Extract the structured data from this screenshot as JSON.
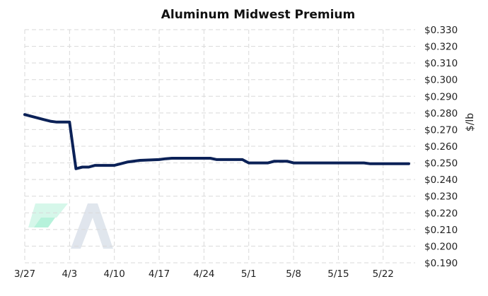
{
  "chart_data": {
    "type": "line",
    "title": "Aluminum Midwest Premium",
    "xlabel": "",
    "ylabel": "$/lb",
    "x_tick_labels": [
      "3/27",
      "4/3",
      "4/10",
      "4/17",
      "4/24",
      "5/1",
      "5/8",
      "5/15",
      "5/22"
    ],
    "y_tick_labels": [
      "$0.190",
      "$0.200",
      "$0.210",
      "$0.220",
      "$0.230",
      "$0.240",
      "$0.250",
      "$0.260",
      "$0.270",
      "$0.280",
      "$0.290",
      "$0.300",
      "$0.310",
      "$0.320",
      "$0.330"
    ],
    "ylim": [
      0.19,
      0.33
    ],
    "xlim": [
      "2023-03-27",
      "2023-05-27"
    ],
    "grid": true,
    "axis_position": "right",
    "series": [
      {
        "color": "#0b2157",
        "points": [
          {
            "x": "2023-03-27",
            "y": 0.279
          },
          {
            "x": "2023-03-28",
            "y": 0.278
          },
          {
            "x": "2023-03-29",
            "y": 0.277
          },
          {
            "x": "2023-03-30",
            "y": 0.276
          },
          {
            "x": "2023-03-31",
            "y": 0.275
          },
          {
            "x": "2023-04-01",
            "y": 0.2745
          },
          {
            "x": "2023-04-02",
            "y": 0.2745
          },
          {
            "x": "2023-04-03",
            "y": 0.2745
          },
          {
            "x": "2023-04-04",
            "y": 0.2465
          },
          {
            "x": "2023-04-05",
            "y": 0.2475
          },
          {
            "x": "2023-04-06",
            "y": 0.2475
          },
          {
            "x": "2023-04-07",
            "y": 0.2485
          },
          {
            "x": "2023-04-10",
            "y": 0.2485
          },
          {
            "x": "2023-04-11",
            "y": 0.2495
          },
          {
            "x": "2023-04-12",
            "y": 0.2505
          },
          {
            "x": "2023-04-14",
            "y": 0.2515
          },
          {
            "x": "2023-04-17",
            "y": 0.252
          },
          {
            "x": "2023-04-18",
            "y": 0.2525
          },
          {
            "x": "2023-04-19",
            "y": 0.2528
          },
          {
            "x": "2023-04-24",
            "y": 0.2528
          },
          {
            "x": "2023-04-25",
            "y": 0.2528
          },
          {
            "x": "2023-04-26",
            "y": 0.252
          },
          {
            "x": "2023-04-28",
            "y": 0.252
          },
          {
            "x": "2023-04-30",
            "y": 0.252
          },
          {
            "x": "2023-05-01",
            "y": 0.25
          },
          {
            "x": "2023-05-03",
            "y": 0.25
          },
          {
            "x": "2023-05-04",
            "y": 0.25
          },
          {
            "x": "2023-05-05",
            "y": 0.251
          },
          {
            "x": "2023-05-07",
            "y": 0.251
          },
          {
            "x": "2023-05-08",
            "y": 0.25
          },
          {
            "x": "2023-05-15",
            "y": 0.25
          },
          {
            "x": "2023-05-19",
            "y": 0.25
          },
          {
            "x": "2023-05-20",
            "y": 0.2495
          },
          {
            "x": "2023-05-22",
            "y": 0.2495
          },
          {
            "x": "2023-05-26",
            "y": 0.2495
          }
        ]
      }
    ]
  },
  "watermark": {
    "icon": "company-logo-icon",
    "colors": [
      "#2ee6a6",
      "#c7cfdb"
    ]
  }
}
